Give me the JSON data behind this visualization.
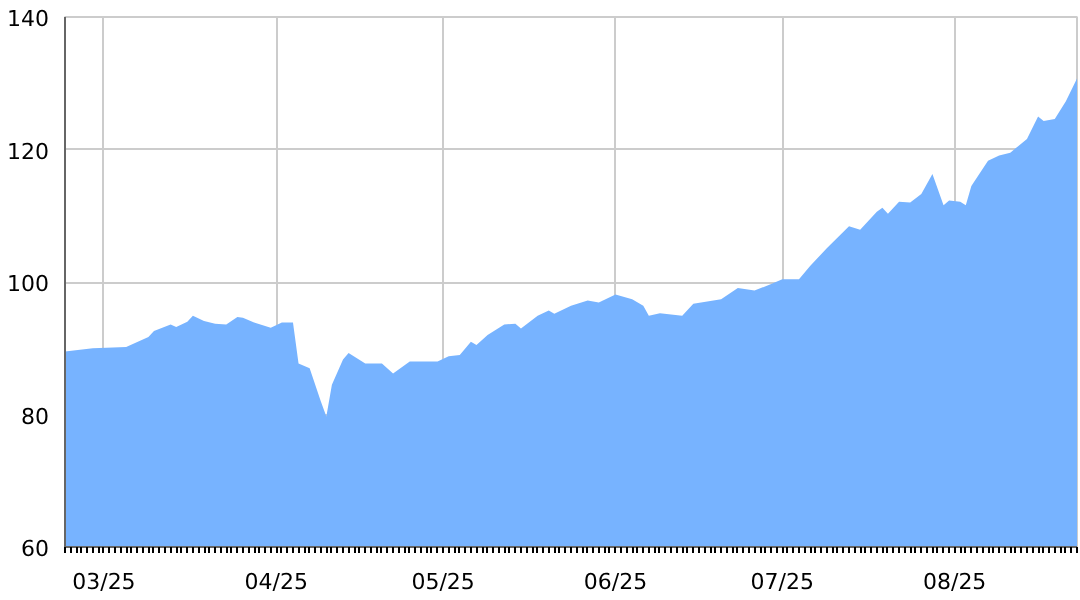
{
  "chart_data": {
    "type": "area",
    "color": "#77b3ff",
    "x": [
      "2025-02-22",
      "2025-02-27",
      "2025-03-05",
      "2025-03-09",
      "2025-03-10",
      "2025-03-13",
      "2025-03-14",
      "2025-03-16",
      "2025-03-17",
      "2025-03-19",
      "2025-03-21",
      "2025-03-23",
      "2025-03-25",
      "2025-03-26",
      "2025-03-28",
      "2025-03-31",
      "2025-04-02",
      "2025-04-04",
      "2025-04-05",
      "2025-04-07",
      "2025-04-09",
      "2025-04-10",
      "2025-04-11",
      "2025-04-13",
      "2025-04-14",
      "2025-04-17",
      "2025-04-20",
      "2025-04-22",
      "2025-04-25",
      "2025-04-27",
      "2025-04-30",
      "2025-05-02",
      "2025-05-04",
      "2025-05-06",
      "2025-05-07",
      "2025-05-09",
      "2025-05-12",
      "2025-05-14",
      "2025-05-15",
      "2025-05-18",
      "2025-05-20",
      "2025-05-21",
      "2025-05-24",
      "2025-05-27",
      "2025-05-29",
      "2025-06-01",
      "2025-06-04",
      "2025-06-06",
      "2025-06-07",
      "2025-06-09",
      "2025-06-13",
      "2025-06-15",
      "2025-06-20",
      "2025-06-23",
      "2025-06-26",
      "2025-06-29",
      "2025-07-01",
      "2025-07-04",
      "2025-07-06",
      "2025-07-09",
      "2025-07-13",
      "2025-07-15",
      "2025-07-18",
      "2025-07-19",
      "2025-07-20",
      "2025-07-22",
      "2025-07-24",
      "2025-07-26",
      "2025-07-28",
      "2025-07-30",
      "2025-07-31",
      "2025-08-02",
      "2025-08-03",
      "2025-08-04",
      "2025-08-07",
      "2025-08-09",
      "2025-08-11",
      "2025-08-14",
      "2025-08-16",
      "2025-08-17",
      "2025-08-19",
      "2025-08-21",
      "2025-08-23"
    ],
    "values": [
      89.5,
      90,
      90.2,
      91.7,
      92.6,
      93.6,
      93.2,
      94,
      94.9,
      94.1,
      93.7,
      93.6,
      94.7,
      94.6,
      93.9,
      93.1,
      93.9,
      93.9,
      87.7,
      87,
      82,
      79.7,
      84.5,
      88.3,
      89.3,
      87.7,
      87.7,
      86.2,
      88,
      88,
      88,
      88.8,
      89,
      91,
      90.5,
      92,
      93.6,
      93.7,
      93,
      94.9,
      95.7,
      95.2,
      96.4,
      97.2,
      96.9,
      98.1,
      97.4,
      96.4,
      94.9,
      95.3,
      94.9,
      96.7,
      97.4,
      99.1,
      98.7,
      99.7,
      100.4,
      100.4,
      102.4,
      105.1,
      108.4,
      107.9,
      110.6,
      111.2,
      110.3,
      112.1,
      112,
      113.3,
      116.3,
      111.6,
      112.3,
      112.1,
      111.6,
      114.5,
      118.3,
      119.1,
      119.5,
      121.6,
      125,
      124.3,
      124.6,
      127.3,
      130.7
    ],
    "xlim": [
      "2025-02-22",
      "2025-08-23"
    ],
    "xticks": [
      {
        "value": "2025-03-01",
        "label": "03/25"
      },
      {
        "value": "2025-04-01",
        "label": "04/25"
      },
      {
        "value": "2025-05-01",
        "label": "05/25"
      },
      {
        "value": "2025-06-01",
        "label": "06/25"
      },
      {
        "value": "2025-07-01",
        "label": "07/25"
      },
      {
        "value": "2025-08-01",
        "label": "08/25"
      }
    ],
    "ylim": [
      60,
      140
    ],
    "yticks": [
      60,
      80,
      100,
      120,
      140
    ],
    "grid": true
  }
}
